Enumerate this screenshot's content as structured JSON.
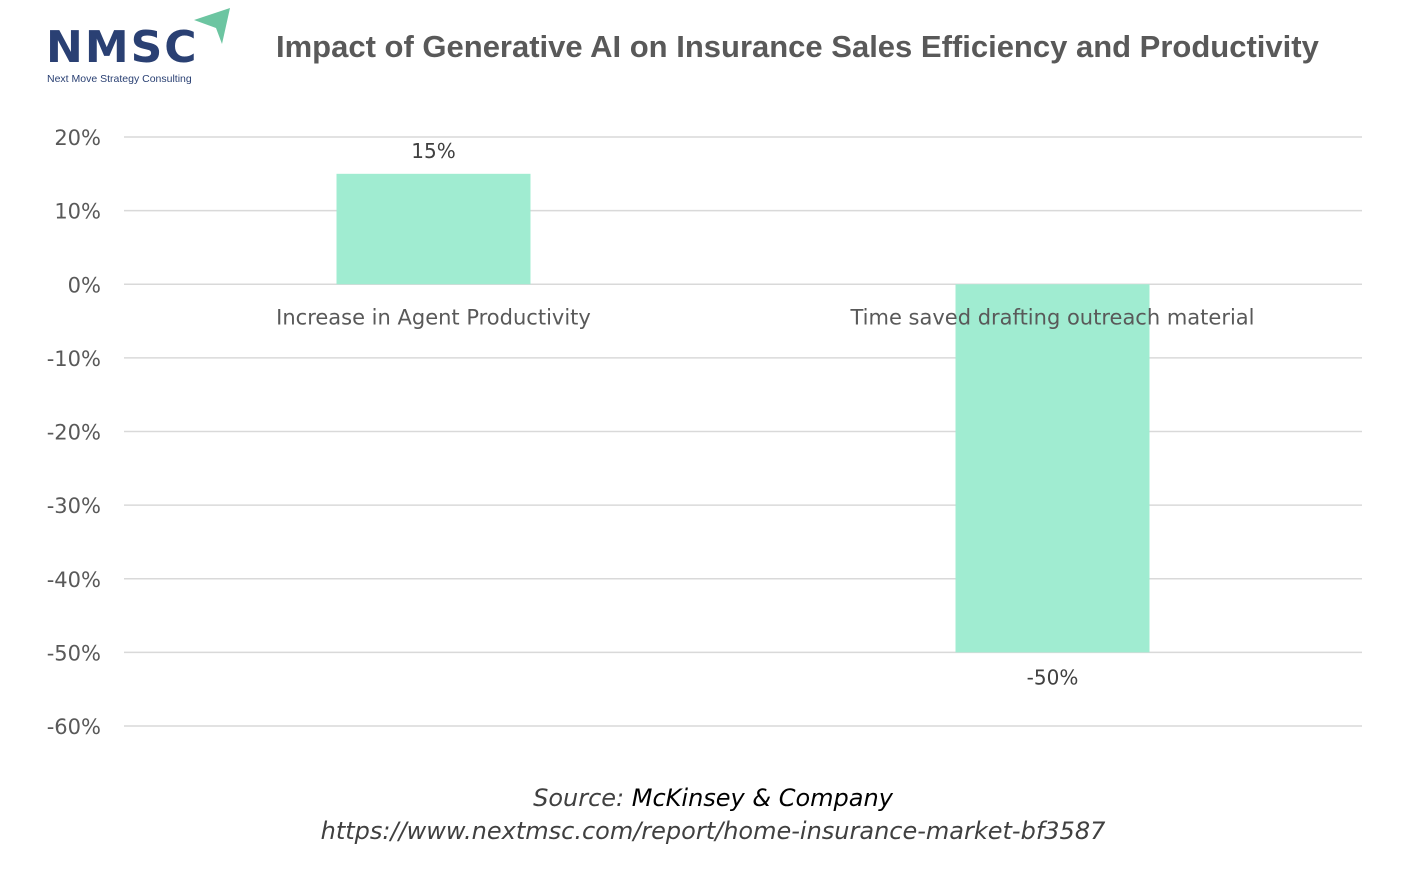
{
  "logo": {
    "text": "NMSC",
    "tagline": "Next Move Strategy Consulting",
    "colors": {
      "navy": "#2a4073",
      "accent": "#6cc5a1"
    }
  },
  "chart_data": {
    "type": "bar",
    "title": "Impact of Generative AI on Insurance Sales Efficiency and Productivity",
    "categories": [
      "Increase in Agent Productivity",
      "Time saved drafting outreach material"
    ],
    "values": [
      15,
      -50
    ],
    "data_labels": [
      "15%",
      "-50%"
    ],
    "ylim": [
      -60,
      20
    ],
    "yticks": [
      "20%",
      "10%",
      "0%",
      "-10%",
      "-20%",
      "-30%",
      "-40%",
      "-50%",
      "-60%"
    ],
    "ytick_values": [
      20,
      10,
      0,
      -10,
      -20,
      -30,
      -40,
      -50,
      -60
    ],
    "grid": true,
    "bar_color": "#a0ecd1",
    "xlabel": "",
    "ylabel": ""
  },
  "source": {
    "label": "Source:",
    "name": "McKinsey & Company",
    "url": "https://www.nextmsc.com/report/home-insurance-market-bf3587"
  }
}
